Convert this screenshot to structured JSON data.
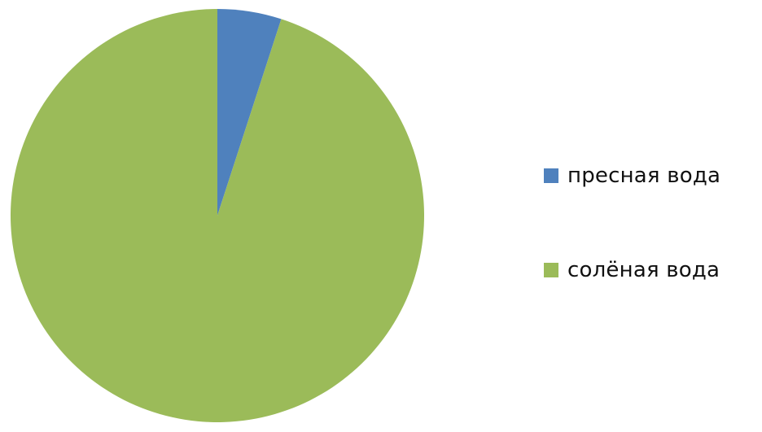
{
  "chart_data": {
    "type": "pie",
    "title": "",
    "slices": [
      {
        "label": "пресная вода",
        "value": 5,
        "color": "#4f81bd"
      },
      {
        "label": "солёная вода",
        "value": 95,
        "color": "#9bbb59"
      }
    ],
    "start_angle_deg": 0,
    "direction": "clockwise",
    "legend_position": "right"
  }
}
